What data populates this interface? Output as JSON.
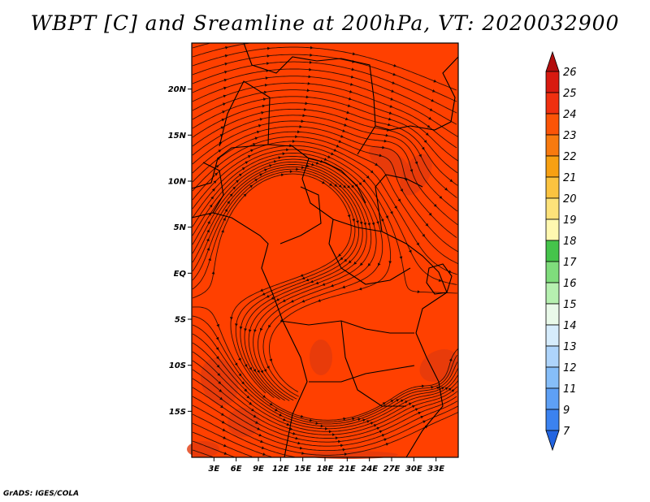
{
  "title": "WBPT [C] and Sreamline at 200hPa, VT: 2020032900",
  "credit": "GrADS: IGES/COLA",
  "map": {
    "lon_range": [
      0,
      36
    ],
    "lat_range": [
      -20,
      25
    ],
    "field_color": "#ff4000",
    "dark_patch_color": "#e23a0c"
  },
  "axes": {
    "y_ticks": [
      {
        "value": 20,
        "label": "20N"
      },
      {
        "value": 15,
        "label": "15N"
      },
      {
        "value": 10,
        "label": "10N"
      },
      {
        "value": 5,
        "label": "5N"
      },
      {
        "value": 0,
        "label": "EQ"
      },
      {
        "value": -5,
        "label": "5S"
      },
      {
        "value": -10,
        "label": "10S"
      },
      {
        "value": -15,
        "label": "15S"
      }
    ],
    "x_ticks": [
      {
        "value": 3,
        "label": "3E"
      },
      {
        "value": 6,
        "label": "6E"
      },
      {
        "value": 9,
        "label": "9E"
      },
      {
        "value": 12,
        "label": "12E"
      },
      {
        "value": 15,
        "label": "15E"
      },
      {
        "value": 18,
        "label": "18E"
      },
      {
        "value": 21,
        "label": "21E"
      },
      {
        "value": 24,
        "label": "24E"
      },
      {
        "value": 27,
        "label": "27E"
      },
      {
        "value": 30,
        "label": "30E"
      },
      {
        "value": 33,
        "label": "33E"
      }
    ]
  },
  "colorbar": {
    "colors": [
      "#2264e0",
      "#3b82f0",
      "#5ea0f5",
      "#86bef9",
      "#aed4fb",
      "#d6ecfc",
      "#e9f9e9",
      "#b6f0b0",
      "#7fdc7c",
      "#45c44b",
      "#fff8b0",
      "#fde27a",
      "#fbc340",
      "#f7a012",
      "#f87a0e",
      "#fb5407",
      "#f03010",
      "#d81a10",
      "#b20e0e"
    ],
    "labels": [
      "26",
      "25",
      "24",
      "23",
      "22",
      "21",
      "20",
      "19",
      "18",
      "17",
      "16",
      "15",
      "14",
      "13",
      "12",
      "11",
      "9",
      "7"
    ]
  }
}
